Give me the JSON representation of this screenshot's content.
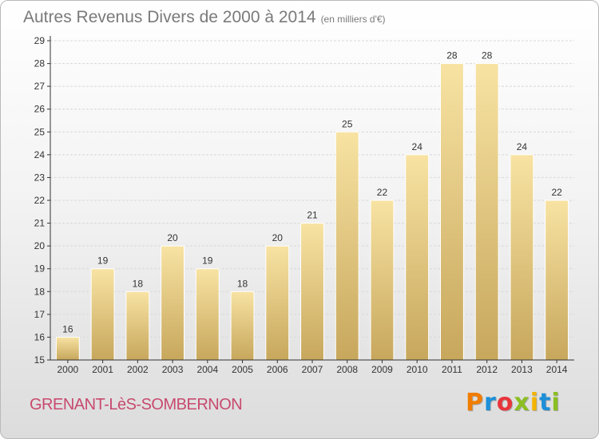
{
  "header": {
    "title": "Autres Revenus Divers de 2000 à 2014",
    "subtitle": "(en milliers d'€)"
  },
  "footer": {
    "place": "GRENANT-LèS-SOMBERNON",
    "brand": "Proxiti",
    "brand_colors": [
      "#f07d00",
      "#1d8fd8",
      "#e8353b",
      "#8bbf22",
      "#f4b400",
      "#1d8fd8",
      "#8bbf22"
    ]
  },
  "colors": {
    "bar_light": "#f8e3a3",
    "bar_dark": "#c7a75c",
    "grid": "#d8d8d8",
    "axis": "#333333",
    "text": "#333333"
  },
  "chart_data": {
    "type": "bar",
    "title": "Autres Revenus Divers de 2000 à 2014",
    "xlabel": "",
    "ylabel": "",
    "categories": [
      "2000",
      "2001",
      "2002",
      "2003",
      "2004",
      "2005",
      "2006",
      "2007",
      "2008",
      "2009",
      "2010",
      "2011",
      "2012",
      "2013",
      "2014"
    ],
    "values": [
      16,
      19,
      18,
      20,
      19,
      18,
      20,
      21,
      25,
      22,
      24,
      28,
      28,
      24,
      22
    ],
    "data_labels": [
      "16",
      "19",
      "18",
      "20",
      "19",
      "18",
      "20",
      "21",
      "25",
      "22",
      "24",
      "28",
      "28",
      "24",
      "22"
    ],
    "ylim": [
      15,
      29
    ],
    "yticks": [
      "15",
      "16",
      "17",
      "18",
      "19",
      "20",
      "21",
      "22",
      "23",
      "24",
      "25",
      "26",
      "27",
      "28",
      "29"
    ],
    "grid": true
  }
}
